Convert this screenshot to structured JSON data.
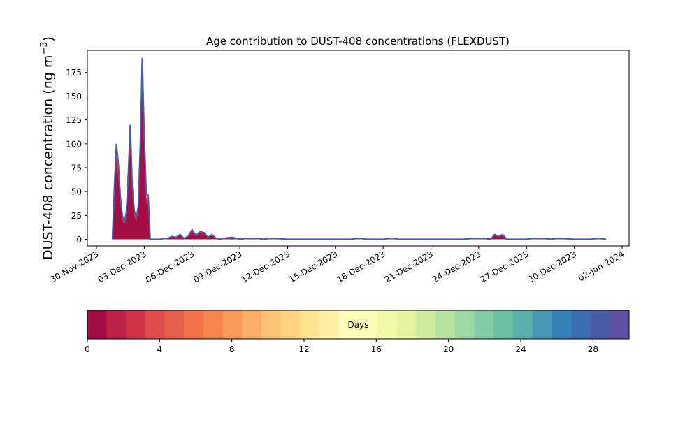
{
  "chart_data": {
    "type": "area",
    "title": "Age contribution to DUST-408 concentrations (FLEXDUST)",
    "ylabel_main": "DUST-408 concentration (ng m",
    "ylabel_sup": "−3",
    "ylabel_close": ")",
    "xlabel": "",
    "ylim": [
      -7,
      198
    ],
    "xlim": [
      "2023-11-30T00:00",
      "2024-01-02T00:00"
    ],
    "y_ticks": [
      0,
      25,
      50,
      75,
      100,
      125,
      150,
      175
    ],
    "x_ticks": [
      {
        "date": "2023-11-30",
        "label": "30-Nov-2023"
      },
      {
        "date": "2023-12-03",
        "label": "03-Dec-2023"
      },
      {
        "date": "2023-12-06",
        "label": "06-Dec-2023"
      },
      {
        "date": "2023-12-09",
        "label": "09-Dec-2023"
      },
      {
        "date": "2023-12-12",
        "label": "12-Dec-2023"
      },
      {
        "date": "2023-12-15",
        "label": "15-Dec-2023"
      },
      {
        "date": "2023-12-18",
        "label": "18-Dec-2023"
      },
      {
        "date": "2023-12-21",
        "label": "21-Dec-2023"
      },
      {
        "date": "2023-12-24",
        "label": "24-Dec-2023"
      },
      {
        "date": "2023-12-27",
        "label": "27-Dec-2023"
      },
      {
        "date": "2023-12-30",
        "label": "30-Dec-2023"
      },
      {
        "date": "2024-01-02",
        "label": "02-Jan-2024"
      }
    ],
    "grid": false,
    "total_series": {
      "x": [
        "2023-12-01T00:00",
        "2023-12-01T03:00",
        "2023-12-01T06:00",
        "2023-12-01T09:00",
        "2023-12-01T12:00",
        "2023-12-01T15:00",
        "2023-12-01T18:00",
        "2023-12-01T21:00",
        "2023-12-02T00:00",
        "2023-12-02T03:00",
        "2023-12-02T06:00",
        "2023-12-02T09:00",
        "2023-12-02T12:00",
        "2023-12-02T15:00",
        "2023-12-02T18:00",
        "2023-12-02T21:00",
        "2023-12-03T00:00",
        "2023-12-03T03:00",
        "2023-12-03T06:00",
        "2023-12-03T09:00",
        "2023-12-03T12:00",
        "2023-12-03T18:00",
        "2023-12-04T00:00",
        "2023-12-04T06:00",
        "2023-12-04T12:00",
        "2023-12-04T18:00",
        "2023-12-05T00:00",
        "2023-12-05T06:00",
        "2023-12-05T12:00",
        "2023-12-05T18:00",
        "2023-12-06T00:00",
        "2023-12-06T06:00",
        "2023-12-06T12:00",
        "2023-12-06T18:00",
        "2023-12-07T00:00",
        "2023-12-07T06:00",
        "2023-12-07T12:00",
        "2023-12-07T18:00",
        "2023-12-08T00:00",
        "2023-12-08T12:00",
        "2023-12-09T00:00",
        "2023-12-09T12:00",
        "2023-12-10T00:00",
        "2023-12-10T12:00",
        "2023-12-11T00:00",
        "2023-12-12T00:00",
        "2023-12-14T00:00",
        "2023-12-16T00:00",
        "2023-12-16T12:00",
        "2023-12-17T00:00",
        "2023-12-18T00:00",
        "2023-12-18T12:00",
        "2023-12-19T00:00",
        "2023-12-21T00:00",
        "2023-12-23T00:00",
        "2023-12-23T18:00",
        "2023-12-24T06:00",
        "2023-12-24T18:00",
        "2023-12-25T00:00",
        "2023-12-25T06:00",
        "2023-12-25T12:00",
        "2023-12-25T18:00",
        "2023-12-26T06:00",
        "2023-12-27T00:00",
        "2023-12-27T12:00",
        "2023-12-28T00:00",
        "2023-12-28T12:00",
        "2023-12-29T00:00",
        "2023-12-30T00:00",
        "2023-12-30T12:00",
        "2023-12-31T00:00",
        "2023-12-31T12:00",
        "2024-01-01T00:00"
      ],
      "y": [
        0,
        55,
        100,
        80,
        45,
        25,
        18,
        28,
        70,
        120,
        55,
        30,
        22,
        35,
        100,
        190,
        110,
        48,
        46,
        0,
        0,
        0,
        0,
        1,
        1,
        3,
        2,
        5,
        1,
        3,
        10,
        4,
        8,
        7,
        2,
        5,
        1,
        0,
        1,
        2,
        0,
        1,
        1,
        0,
        1,
        0,
        0,
        0,
        1,
        0,
        0,
        1,
        0,
        0,
        0,
        1,
        1,
        0,
        5,
        3,
        5,
        0,
        0,
        0,
        1,
        1,
        0,
        1,
        0,
        0,
        0,
        1,
        0
      ]
    },
    "colorbar": {
      "label": "Days",
      "range": [
        0,
        30
      ],
      "ticks": [
        0,
        4,
        8,
        12,
        16,
        20,
        24,
        28
      ],
      "colors": [
        "#a50e44",
        "#bc2146",
        "#d03447",
        "#de4c4b",
        "#e8604d",
        "#f2734a",
        "#f7864e",
        "#fa9a59",
        "#fcaf64",
        "#fdc372",
        "#fed482",
        "#fee391",
        "#fff0a6",
        "#fffbb9",
        "#f9fcb5",
        "#f0f9a8",
        "#e2f39b",
        "#cfeb9c",
        "#b7e2a1",
        "#9dd7a4",
        "#83cca5",
        "#6cc1a5",
        "#58b0ab",
        "#4599b2",
        "#3681b9",
        "#3a6db1",
        "#4a5ba8",
        "#5e4fa2"
      ]
    }
  }
}
